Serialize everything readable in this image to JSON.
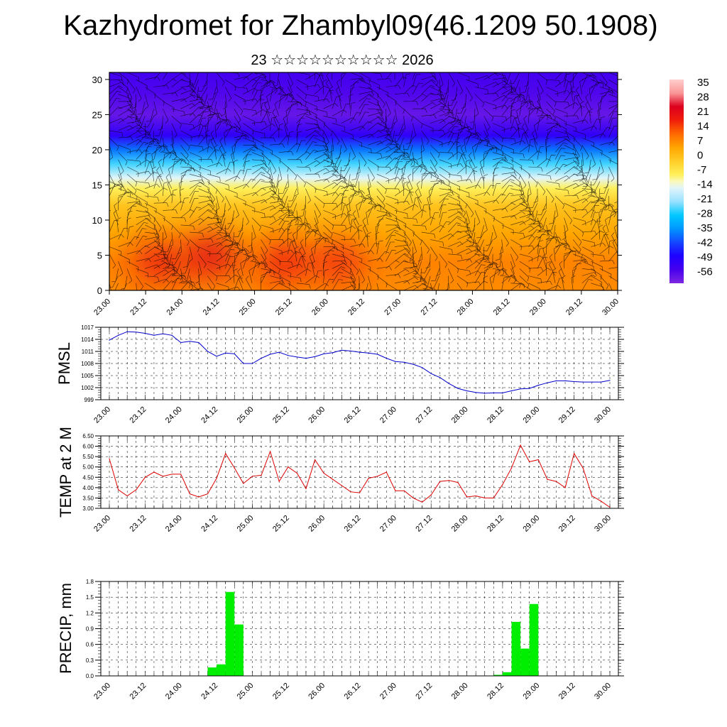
{
  "header": {
    "title": "Kazhydromet for Zhambyl09(46.1209 50.1908)",
    "subtitle": "23 ☆☆☆☆☆☆☆☆☆☆ 2026"
  },
  "colors": {
    "pmsl_line": "#0000cc",
    "temp_line": "#dd0000",
    "precip_bar": "#00ee00",
    "wind_barb": "#000000"
  },
  "chart_data": [
    {
      "type": "heatmap",
      "name": "temperature-cross-section",
      "title": "",
      "xlabel": "",
      "ylabel": "",
      "x_tick_labels": [
        "23.00",
        "23.12",
        "24.00",
        "24.12",
        "25.00",
        "25.12",
        "26.00",
        "26.12",
        "27.00",
        "27.12",
        "28.00",
        "28.12",
        "29.00",
        "29.12",
        "30.00"
      ],
      "y_ticks": [
        0,
        5,
        10,
        15,
        20,
        25,
        30
      ],
      "ylim": [
        0,
        31
      ],
      "colorbar_labels": [
        "35",
        "28",
        "21",
        "14",
        "7",
        "0",
        "-7",
        "-14",
        "-21",
        "-28",
        "-35",
        "-42",
        "-49",
        "-56"
      ],
      "colorbar_range": [
        -63,
        42
      ],
      "vertical_profile": [
        {
          "level": 0,
          "value": 10
        },
        {
          "level": 4,
          "value": 11
        },
        {
          "level": 8,
          "value": 7
        },
        {
          "level": 12,
          "value": 2
        },
        {
          "level": 14.5,
          "value": -7
        },
        {
          "level": 16,
          "value": -14
        },
        {
          "level": 18,
          "value": -25
        },
        {
          "level": 20,
          "value": -38
        },
        {
          "level": 22,
          "value": -52
        },
        {
          "level": 25,
          "value": -60
        },
        {
          "level": 28,
          "value": -57
        },
        {
          "level": 31,
          "value": -55
        }
      ],
      "warm_cores": [
        {
          "x": 1.35,
          "level": 4,
          "value": 23
        },
        {
          "x": 2.8,
          "level": 5,
          "value": 28
        },
        {
          "x": 4.8,
          "level": 4,
          "value": 22
        },
        {
          "x": 6.3,
          "level": 4,
          "value": 20
        }
      ],
      "wind_barbs": true
    },
    {
      "type": "line",
      "name": "pmsl",
      "ylabel": "PMSL",
      "x_tick_labels": [
        "23.00",
        "23.12",
        "24.00",
        "24.12",
        "25.00",
        "25.12",
        "26.00",
        "26.12",
        "27.00",
        "27.12",
        "28.00",
        "28.12",
        "29.00",
        "29.12",
        "30.00"
      ],
      "y_tick_labels": [
        "1017",
        "1014",
        "1011",
        "1008",
        "1005",
        "1002",
        "999"
      ],
      "ylim": [
        999,
        1017
      ],
      "grid": true,
      "series": [
        {
          "x": [
            0,
            0.25,
            0.5,
            0.75,
            1,
            1.25,
            1.5,
            1.75,
            2,
            2.25,
            2.5,
            2.75,
            3,
            3.25,
            3.5,
            3.75,
            4,
            4.25,
            4.5,
            4.75,
            5,
            5.25,
            5.5,
            5.75,
            6,
            6.25,
            6.5,
            6.75,
            7,
            7.25,
            7.5,
            7.75,
            8,
            8.25,
            8.5,
            8.75,
            9,
            9.25,
            9.5,
            9.75,
            10,
            10.25,
            10.5,
            10.75,
            11,
            11.25,
            11.5,
            11.75,
            12,
            12.25,
            12.5,
            12.75,
            13,
            13.25,
            13.5,
            13.75,
            14
          ],
          "values": [
            1013.8,
            1015.0,
            1015.9,
            1015.8,
            1015.5,
            1015.0,
            1015.4,
            1015.0,
            1013.2,
            1013.5,
            1013.2,
            1011.0,
            1009.8,
            1010.6,
            1010.4,
            1008.0,
            1008.0,
            1009.3,
            1010.3,
            1010.8,
            1010.0,
            1009.6,
            1009.3,
            1009.7,
            1010.4,
            1010.7,
            1011.3,
            1011.1,
            1010.8,
            1010.6,
            1010.3,
            1009.3,
            1008.5,
            1008.3,
            1007.8,
            1007.0,
            1005.5,
            1004.5,
            1003.0,
            1001.8,
            1001.2,
            1000.8,
            1000.6,
            1000.7,
            1000.7,
            1001.2,
            1001.7,
            1001.8,
            1002.6,
            1003.2,
            1003.7,
            1003.7,
            1003.5,
            1003.4,
            1003.4,
            1003.4,
            1003.8
          ]
        }
      ]
    },
    {
      "type": "line",
      "name": "temp-2m",
      "ylabel": "TEMP at 2 M",
      "x_tick_labels": [
        "23.00",
        "23.12",
        "24.00",
        "24.12",
        "25.00",
        "25.12",
        "26.00",
        "26.12",
        "27.00",
        "27.12",
        "28.00",
        "28.12",
        "29.00",
        "29.12",
        "30.00"
      ],
      "y_tick_labels": [
        "6.50",
        "6.00",
        "5.50",
        "5.00",
        "4.50",
        "4.00",
        "3.50",
        "3.00"
      ],
      "ylim": [
        3.0,
        6.5
      ],
      "grid": true,
      "series": [
        {
          "x": [
            0,
            0.25,
            0.5,
            0.75,
            1,
            1.25,
            1.5,
            1.75,
            2,
            2.25,
            2.5,
            2.75,
            3,
            3.25,
            3.5,
            3.75,
            4,
            4.25,
            4.5,
            4.75,
            5,
            5.25,
            5.5,
            5.75,
            6,
            6.25,
            6.5,
            6.75,
            7,
            7.25,
            7.5,
            7.75,
            8,
            8.25,
            8.5,
            8.75,
            9,
            9.25,
            9.5,
            9.75,
            10,
            10.25,
            10.5,
            10.75,
            11,
            11.25,
            11.5,
            11.75,
            12,
            12.25,
            12.5,
            12.75,
            13,
            13.25,
            13.5,
            13.75,
            14
          ],
          "values": [
            5.4,
            3.9,
            3.6,
            3.9,
            4.5,
            4.75,
            4.55,
            4.65,
            4.65,
            3.7,
            3.55,
            3.7,
            4.45,
            5.65,
            4.95,
            4.2,
            4.55,
            4.6,
            5.75,
            4.3,
            5.0,
            4.7,
            3.95,
            5.35,
            4.7,
            4.4,
            4.1,
            3.8,
            3.75,
            4.45,
            4.55,
            4.75,
            3.85,
            3.85,
            3.5,
            3.3,
            3.65,
            4.3,
            4.35,
            4.25,
            3.55,
            3.6,
            3.5,
            3.5,
            4.15,
            4.95,
            6.05,
            5.25,
            5.35,
            4.4,
            4.3,
            4.0,
            5.65,
            4.95,
            3.6,
            3.35,
            3.05
          ]
        }
      ]
    },
    {
      "type": "bar",
      "name": "precip",
      "ylabel": "PRECIP, mm",
      "x_tick_labels": [
        "23.00",
        "23.12",
        "24.00",
        "24.12",
        "25.00",
        "25.12",
        "26.00",
        "26.12",
        "27.00",
        "27.12",
        "28.00",
        "28.12",
        "29.00",
        "29.12",
        "30.00"
      ],
      "y_tick_labels": [
        "1.8",
        "1.5",
        "1.2",
        "0.9",
        "0.6",
        "0.3",
        "0.0"
      ],
      "ylim": [
        0,
        1.8
      ],
      "grid": true,
      "bar_width": 0.25,
      "series": [
        {
          "x": [
            2.875,
            3.125,
            3.375,
            3.625,
            10.875,
            11.125,
            11.375,
            11.625,
            11.875
          ],
          "values": [
            0.16,
            0.22,
            1.6,
            0.98,
            0.02,
            0.07,
            1.03,
            0.52,
            1.37
          ]
        }
      ]
    }
  ]
}
